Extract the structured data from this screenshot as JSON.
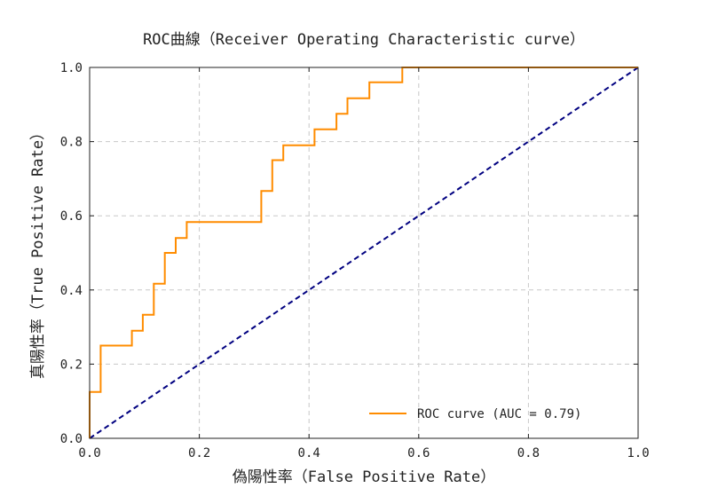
{
  "chart_data": {
    "type": "line",
    "title": "ROC曲線（Receiver Operating Characteristic curve）",
    "xlabel": "偽陽性率（False Positive Rate）",
    "ylabel": "真陽性率（True Positive Rate）",
    "xlim": [
      0.0,
      1.0
    ],
    "ylim": [
      0.0,
      1.0
    ],
    "xticks": [
      "0.0",
      "0.2",
      "0.4",
      "0.6",
      "0.8",
      "1.0"
    ],
    "yticks": [
      "0.0",
      "0.2",
      "0.4",
      "0.6",
      "0.8",
      "1.0"
    ],
    "grid": true,
    "legend_position": "bottom-right",
    "series": [
      {
        "name": "ROC curve (AUC = 0.79)",
        "color": "#ff8c00",
        "style": "solid",
        "x": [
          0.0,
          0.0,
          0.0,
          0.02,
          0.02,
          0.077,
          0.077,
          0.097,
          0.097,
          0.117,
          0.117,
          0.137,
          0.137,
          0.157,
          0.157,
          0.177,
          0.177,
          0.313,
          0.313,
          0.333,
          0.333,
          0.353,
          0.353,
          0.41,
          0.41,
          0.45,
          0.45,
          0.47,
          0.47,
          0.51,
          0.51,
          0.57,
          0.57,
          1.0
        ],
        "y": [
          0.0,
          0.04,
          0.125,
          0.125,
          0.25,
          0.25,
          0.29,
          0.29,
          0.333,
          0.333,
          0.417,
          0.417,
          0.5,
          0.5,
          0.54,
          0.54,
          0.583,
          0.583,
          0.667,
          0.667,
          0.75,
          0.75,
          0.79,
          0.79,
          0.833,
          0.833,
          0.875,
          0.875,
          0.917,
          0.917,
          0.96,
          0.96,
          1.0,
          1.0
        ]
      },
      {
        "color": "#000080",
        "style": "dashed",
        "x": [
          0.0,
          1.0
        ],
        "y": [
          0.0,
          1.0
        ]
      }
    ]
  }
}
